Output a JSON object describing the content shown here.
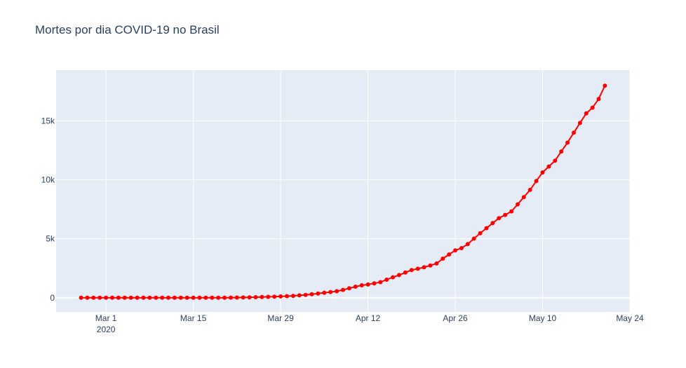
{
  "chart_data": {
    "type": "line",
    "title": "Mortes por dia COVID-19 no Brasil",
    "xlabel": "",
    "ylabel": "",
    "x_start": "2020-02-26",
    "x_axis": {
      "range": [
        "2020-02-22",
        "2020-05-24"
      ],
      "ticks": [
        {
          "date": "2020-03-01",
          "label": "Mar 1",
          "sublabel": "2020"
        },
        {
          "date": "2020-03-15",
          "label": "Mar 15",
          "sublabel": ""
        },
        {
          "date": "2020-03-29",
          "label": "Mar 29",
          "sublabel": ""
        },
        {
          "date": "2020-04-12",
          "label": "Apr 12",
          "sublabel": ""
        },
        {
          "date": "2020-04-26",
          "label": "Apr 26",
          "sublabel": ""
        },
        {
          "date": "2020-05-10",
          "label": "May 10",
          "sublabel": ""
        },
        {
          "date": "2020-05-24",
          "label": "May 24",
          "sublabel": ""
        }
      ]
    },
    "y_axis": {
      "range": [
        -1200,
        19300
      ],
      "ticks": [
        {
          "value": 0,
          "label": "0"
        },
        {
          "value": 5000,
          "label": "5k"
        },
        {
          "value": 10000,
          "label": "10k"
        },
        {
          "value": 15000,
          "label": "15k"
        }
      ]
    },
    "grid": true,
    "series": [
      {
        "color": "#ff0000",
        "mode": "lines+markers",
        "values": [
          0,
          0,
          0,
          0,
          0,
          0,
          0,
          0,
          0,
          0,
          0,
          0,
          0,
          0,
          0,
          0,
          0,
          0,
          0,
          0,
          0,
          1,
          3,
          6,
          11,
          18,
          25,
          34,
          46,
          57,
          77,
          92,
          114,
          136,
          159,
          201,
          240,
          299,
          359,
          431,
          486,
          553,
          667,
          800,
          941,
          1056,
          1124,
          1223,
          1328,
          1532,
          1736,
          1924,
          2141,
          2347,
          2462,
          2587,
          2741,
          2906,
          3313,
          3670,
          4016,
          4205,
          4543,
          5017,
          5466,
          5901,
          6329,
          6750,
          7025,
          7321,
          7921,
          8536,
          9146,
          9897,
          10627,
          11123,
          11625,
          12400,
          13149,
          13993,
          14817,
          15633,
          16118,
          16853,
          17983
        ]
      }
    ]
  }
}
